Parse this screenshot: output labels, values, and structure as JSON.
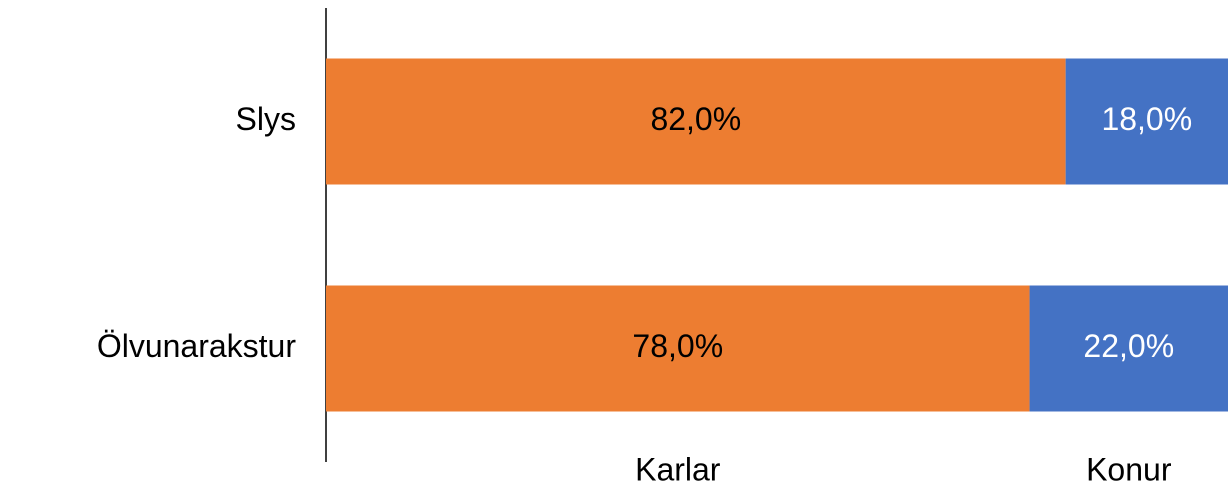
{
  "chart_data": {
    "type": "stacked-bar-horizontal",
    "categories": [
      "Slys",
      "Ölvunarakstur"
    ],
    "series": [
      {
        "name": "Karlar",
        "color": "#ed7d31",
        "values": [
          82,
          78
        ],
        "value_labels": [
          "82,0%",
          "78,0%"
        ]
      },
      {
        "name": "Konur",
        "color": "#4472c4",
        "values": [
          18,
          22
        ],
        "value_labels": [
          "18,0%",
          "22,0%"
        ]
      }
    ],
    "xlim": [
      0,
      100
    ],
    "legend": "bottom"
  }
}
